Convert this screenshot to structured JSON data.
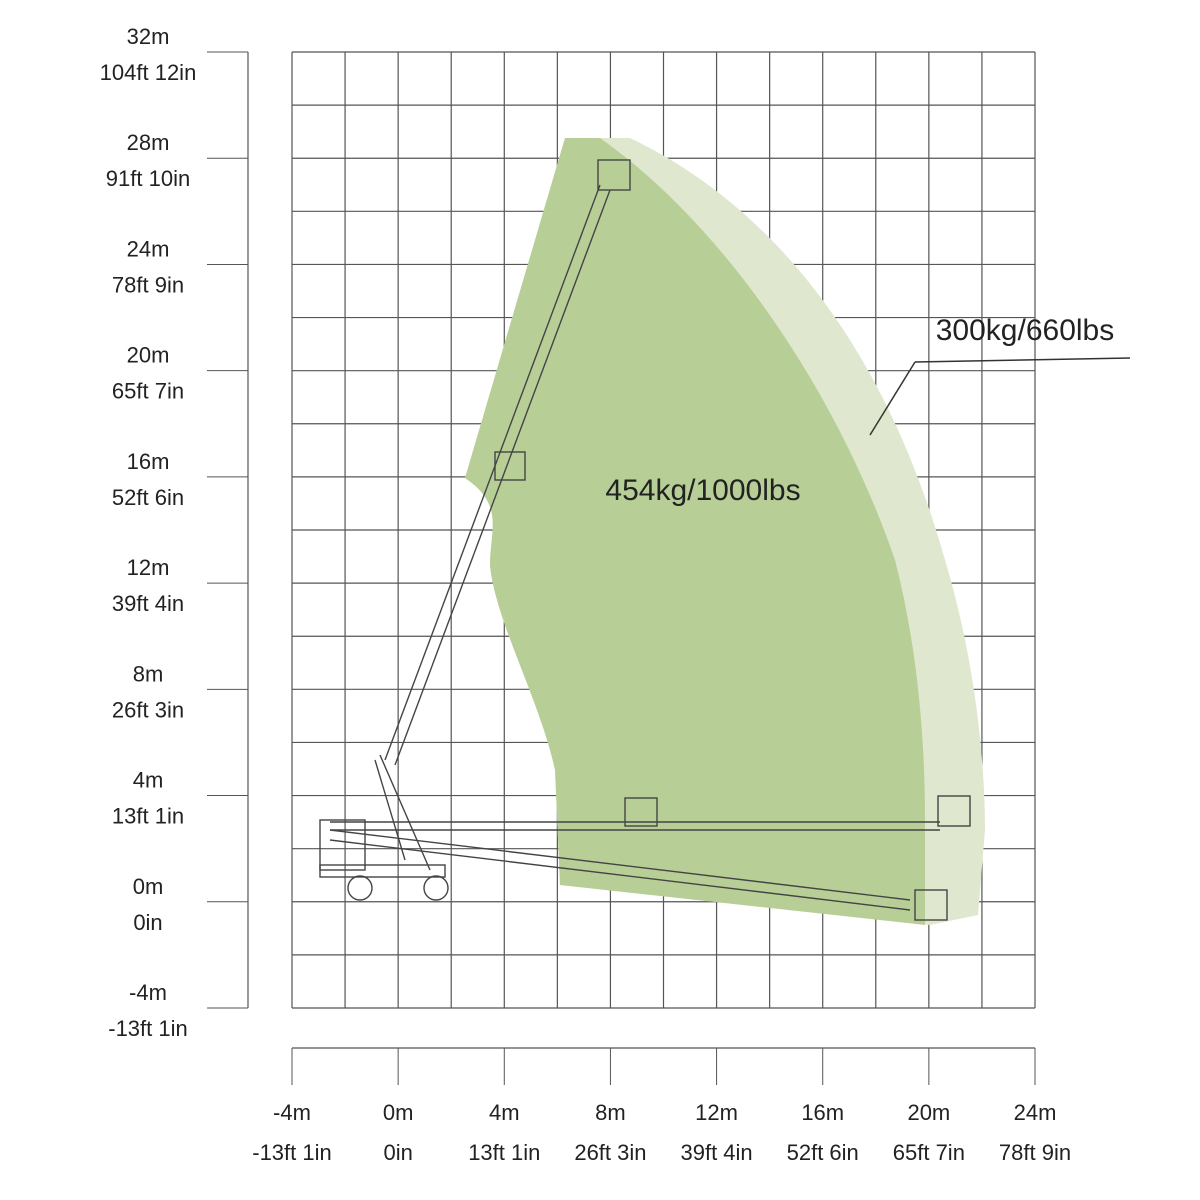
{
  "y_axis": {
    "labels": [
      {
        "metric": "32m",
        "imperial": "104ft 12in"
      },
      {
        "metric": "28m",
        "imperial": "91ft 10in"
      },
      {
        "metric": "24m",
        "imperial": "78ft 9in"
      },
      {
        "metric": "20m",
        "imperial": "65ft 7in"
      },
      {
        "metric": "16m",
        "imperial": "52ft 6in"
      },
      {
        "metric": "12m",
        "imperial": "39ft 4in"
      },
      {
        "metric": "8m",
        "imperial": "26ft 3in"
      },
      {
        "metric": "4m",
        "imperial": "13ft 1in"
      },
      {
        "metric": "0m",
        "imperial": "0in"
      },
      {
        "metric": "-4m",
        "imperial": "-13ft 1in"
      }
    ]
  },
  "x_axis": {
    "labels": [
      {
        "metric": "-4m",
        "imperial": "-13ft 1in"
      },
      {
        "metric": "0m",
        "imperial": "0in"
      },
      {
        "metric": "4m",
        "imperial": "13ft 1in"
      },
      {
        "metric": "8m",
        "imperial": "26ft 3in"
      },
      {
        "metric": "12m",
        "imperial": "39ft 4in"
      },
      {
        "metric": "16m",
        "imperial": "52ft 6in"
      },
      {
        "metric": "20m",
        "imperial": "65ft 7in"
      },
      {
        "metric": "24m",
        "imperial": "78ft 9in"
      }
    ]
  },
  "zones": {
    "outer": "300kg/660lbs",
    "inner": "454kg/1000lbs"
  }
}
